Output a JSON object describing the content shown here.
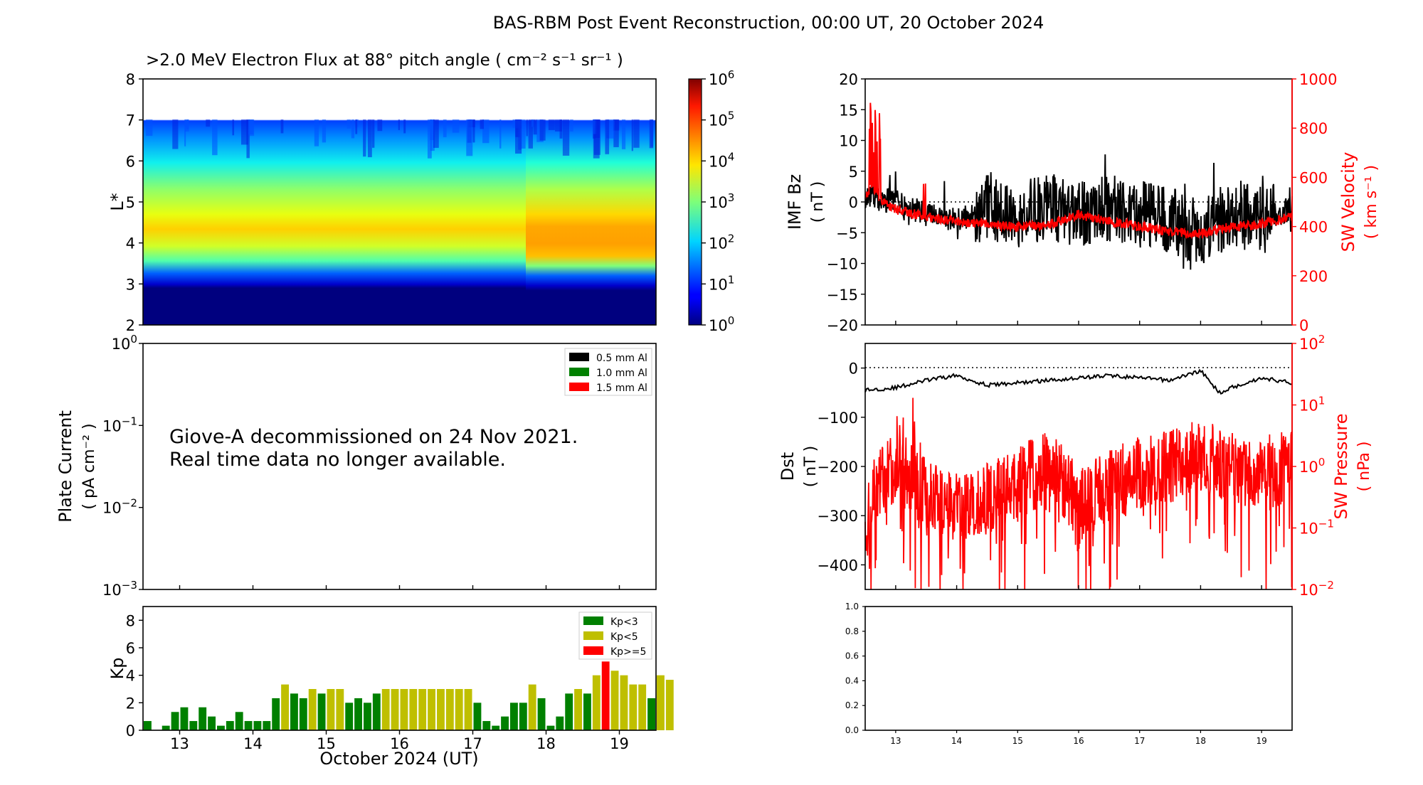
{
  "figure": {
    "title": "BAS-RBM Post Event Reconstruction, 00:00 UT, 20 October 2024",
    "xlabel": "October 2024 (UT)",
    "day_ticks": [
      "13",
      "14",
      "15",
      "16",
      "17",
      "18",
      "19"
    ],
    "notice_line1": "Giove-A decommissioned on 24 Nov 2021.",
    "notice_line2": "Real time data no longer available.",
    "flux_title": ">2.0 MeV Electron Flux at 88° pitch angle ( cm⁻² s⁻¹ sr⁻¹ )"
  },
  "colors": {
    "black": "#000000",
    "red": "#ff0000",
    "green": "#008000",
    "olive": "#bfbf00",
    "deep_blue": "#00008b"
  },
  "chart_data": [
    {
      "id": "flux",
      "type": "heatmap",
      "title": ">2.0 MeV Electron Flux at 88° pitch angle ( cm⁻² s⁻¹ sr⁻¹ )",
      "ylabel": "L*",
      "ylim": [
        2,
        8
      ],
      "yticks": [
        "2",
        "3",
        "4",
        "5",
        "6",
        "7",
        "8"
      ],
      "xlim": [
        12.5,
        19.5
      ],
      "colorbar_ticks": [
        {
          "base": "10",
          "exp": "0"
        },
        {
          "base": "10",
          "exp": "1"
        },
        {
          "base": "10",
          "exp": "2"
        },
        {
          "base": "10",
          "exp": "3"
        },
        {
          "base": "10",
          "exp": "4"
        },
        {
          "base": "10",
          "exp": "5"
        },
        {
          "base": "10",
          "exp": "6"
        }
      ],
      "colorbar_range_log10": [
        0,
        6
      ],
      "description": "Peak log10 flux ~4.3 near L*=4 after 17.8; ~3.8 before; zero below L*~3"
    },
    {
      "id": "plate_current",
      "type": "line",
      "ylabel": "Plate Current",
      "ylabel2": "( pA cm⁻² )",
      "yscale": "log",
      "yticks": [
        {
          "base": "10",
          "exp": "0"
        },
        {
          "base": "10",
          "exp": "−1"
        },
        {
          "base": "10",
          "exp": "−2"
        },
        {
          "base": "10",
          "exp": "−3"
        }
      ],
      "legend": [
        {
          "label": "0.5 mm Al",
          "color": "#000000"
        },
        {
          "label": "1.0 mm Al",
          "color": "#008000"
        },
        {
          "label": "1.5 mm Al",
          "color": "#ff0000"
        }
      ],
      "series": []
    },
    {
      "id": "kp",
      "type": "bar",
      "ylabel": "Kp",
      "ylim": [
        0,
        9
      ],
      "yticks": [
        "0",
        "2",
        "4",
        "6",
        "8"
      ],
      "x_start": 12.5,
      "bin_width_days": 0.125,
      "values": [
        0.67,
        0,
        0.33,
        1.33,
        1.67,
        0.67,
        1.67,
        1.0,
        0.33,
        0.67,
        1.33,
        0.67,
        0.67,
        0.67,
        2.33,
        3.33,
        2.67,
        2.33,
        3.0,
        2.67,
        3.0,
        3.0,
        2.0,
        2.33,
        2.0,
        2.67,
        3.0,
        3.0,
        3.0,
        3.0,
        3.0,
        3.0,
        3.0,
        3.0,
        3.0,
        3.0,
        2.0,
        0.67,
        0.33,
        1.0,
        2.0,
        2.0,
        3.33,
        2.33,
        0.33,
        1.0,
        2.67,
        3.0,
        2.67,
        4.0,
        5.0,
        4.33,
        4.0,
        3.33,
        3.33,
        2.33,
        4.0,
        3.67
      ],
      "legend": [
        {
          "label": "Kp<3",
          "color": "#008000"
        },
        {
          "label": "Kp<5",
          "color": "#bfbf00"
        },
        {
          "label": "Kp>=5",
          "color": "#ff0000"
        }
      ]
    },
    {
      "id": "imf_sw",
      "type": "line",
      "ylabel": "IMF Bz",
      "ylabel_units": "( nT )",
      "ylim": [
        -20,
        20
      ],
      "yticks": [
        "20",
        "15",
        "10",
        "5",
        "0",
        "−5",
        "−10",
        "−15",
        "−20"
      ],
      "y2label": "SW Velocity",
      "y2label_units": "( km s⁻¹ )",
      "y2lim": [
        0,
        1000
      ],
      "y2ticks": [
        "1000",
        "800",
        "600",
        "400",
        "200",
        "0"
      ],
      "series": [
        {
          "name": "IMF Bz",
          "color": "#000000",
          "x": [
            12.5,
            13.0,
            13.5,
            14.0,
            14.5,
            15.0,
            15.5,
            16.0,
            16.5,
            17.0,
            17.5,
            18.0,
            18.5,
            19.0,
            19.5
          ],
          "y": [
            1,
            0,
            -2,
            -3,
            -1,
            -2,
            -1,
            -2,
            -1,
            -2,
            -3,
            -5,
            -2,
            -3,
            -1
          ]
        },
        {
          "name": "SW Velocity",
          "color": "#ff0000",
          "x": [
            12.5,
            12.6,
            12.8,
            13.0,
            13.5,
            14.0,
            14.5,
            15.0,
            15.5,
            16.0,
            16.5,
            17.0,
            17.5,
            18.0,
            18.5,
            19.0,
            19.5
          ],
          "y": [
            520,
            560,
            500,
            470,
            440,
            420,
            410,
            400,
            405,
            450,
            420,
            400,
            380,
            370,
            400,
            410,
            440
          ]
        }
      ]
    },
    {
      "id": "dst_pressure",
      "type": "line",
      "ylabel": "Dst",
      "ylabel_units": "( nT )",
      "ylim": [
        -450,
        50
      ],
      "yticks": [
        "0",
        "−100",
        "−200",
        "−300",
        "−400"
      ],
      "y2label": "SW Pressure",
      "y2label_units": "( nPa )",
      "y2scale": "log",
      "y2ticks": [
        {
          "base": "10",
          "exp": "2"
        },
        {
          "base": "10",
          "exp": "1"
        },
        {
          "base": "10",
          "exp": "0"
        },
        {
          "base": "10",
          "exp": "−1"
        },
        {
          "base": "10",
          "exp": "−2"
        }
      ],
      "series": [
        {
          "name": "Dst",
          "color": "#000000",
          "x": [
            12.5,
            13.0,
            13.5,
            14.0,
            14.5,
            15.0,
            15.5,
            16.0,
            16.5,
            17.0,
            17.5,
            18.0,
            18.3,
            18.5,
            19.0,
            19.5
          ],
          "y": [
            -45,
            -40,
            -25,
            -15,
            -35,
            -30,
            -25,
            -20,
            -15,
            -20,
            -25,
            -5,
            -50,
            -40,
            -20,
            -30
          ]
        },
        {
          "name": "SW Pressure",
          "color": "#ff0000",
          "x": [
            12.5,
            13.0,
            13.5,
            14.0,
            14.5,
            15.0,
            15.5,
            16.0,
            16.5,
            17.0,
            17.5,
            18.0,
            18.5,
            19.0,
            19.5
          ],
          "y": [
            0.05,
            1.0,
            0.3,
            0.2,
            0.3,
            0.5,
            1.0,
            0.2,
            0.5,
            0.8,
            1.0,
            1.5,
            1.0,
            0.8,
            1.0
          ]
        }
      ]
    },
    {
      "id": "empty_panel",
      "type": "line",
      "ylim": [
        0,
        1
      ],
      "yticks": [
        "0.0",
        "0.2",
        "0.4",
        "0.6",
        "0.8",
        "1.0"
      ],
      "series": []
    }
  ]
}
